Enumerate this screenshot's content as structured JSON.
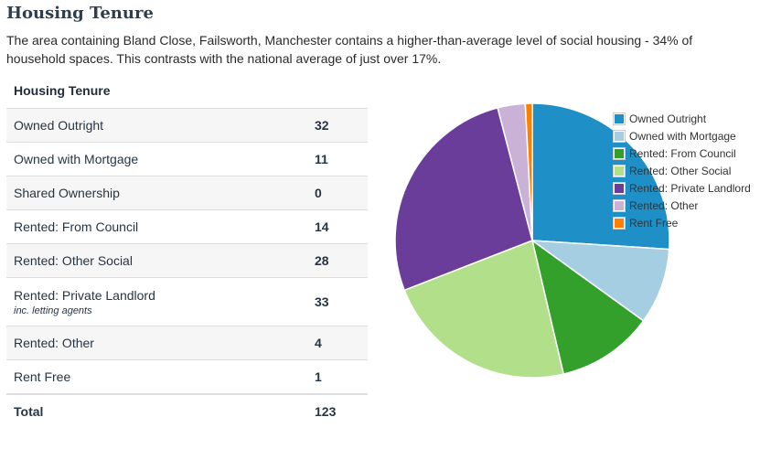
{
  "page": {
    "title": "Housing Tenure",
    "intro": "The area containing Bland Close, Failsworth, Manchester contains a higher-than-average level of social housing - 34% of household spaces. This contrasts with the national average of just over 17%."
  },
  "table": {
    "heading": "Housing Tenure",
    "rows": [
      {
        "label": "Owned Outright",
        "value": "32"
      },
      {
        "label": "Owned with Mortgage",
        "value": "11"
      },
      {
        "label": "Shared Ownership",
        "value": "0"
      },
      {
        "label": "Rented: From Council",
        "value": "14"
      },
      {
        "label": "Rented: Other Social",
        "value": "28"
      },
      {
        "label": "Rented: Private Landlord",
        "note": "inc. letting agents",
        "value": "33"
      },
      {
        "label": "Rented: Other",
        "value": "4"
      },
      {
        "label": "Rent Free",
        "value": "1"
      }
    ],
    "total_label": "Total",
    "total_value": "123"
  },
  "chart_data": {
    "type": "pie",
    "title": "",
    "categories": [
      "Owned Outright",
      "Owned with Mortgage",
      "Rented: From Council",
      "Rented: Other Social",
      "Rented: Private Landlord",
      "Rented: Other",
      "Rent Free"
    ],
    "values": [
      32,
      11,
      14,
      28,
      33,
      4,
      1
    ],
    "colors": [
      "#1f8fc7",
      "#a6cee3",
      "#33a02c",
      "#b2df8a",
      "#6a3d9a",
      "#cab2d6",
      "#ff7f00"
    ],
    "legend_position": "top-right"
  }
}
